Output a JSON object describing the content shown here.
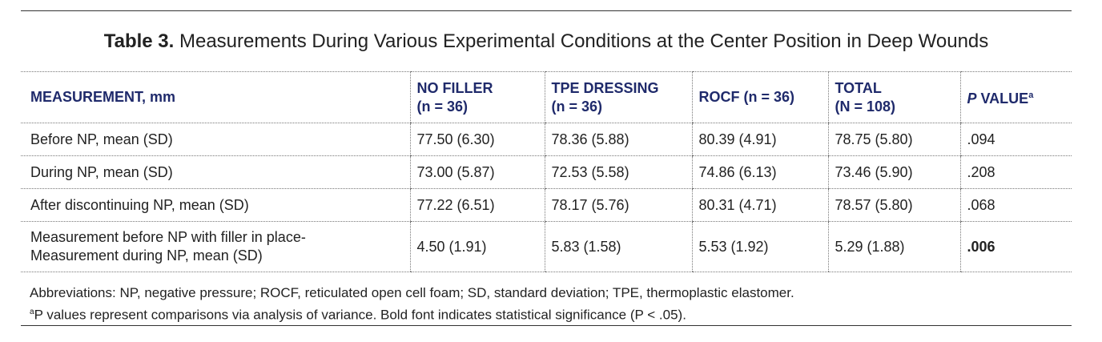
{
  "title": {
    "label": "Table 3.",
    "text": " Measurements During Various Experimental Conditions at the Center Position in Deep Wounds"
  },
  "columns": [
    {
      "line1": "MEASUREMENT, mm",
      "line2": ""
    },
    {
      "line1": "NO FILLER",
      "line2": "(n = 36)"
    },
    {
      "line1": "TPE DRESSING",
      "line2": "(n = 36)"
    },
    {
      "line1": "ROCF (n = 36)",
      "line2": ""
    },
    {
      "line1": "TOTAL",
      "line2": "(N = 108)"
    },
    {
      "line1": "P",
      "line1b": " VALUE",
      "sup": "a"
    }
  ],
  "rows": [
    {
      "label": "Before NP, mean (SD)",
      "label2": "",
      "values": [
        "77.50 (6.30)",
        "78.36 (5.88)",
        "80.39 (4.91)",
        "78.75 (5.80)",
        ".094"
      ]
    },
    {
      "label": "During NP, mean (SD)",
      "label2": "",
      "values": [
        "73.00 (5.87)",
        "72.53 (5.58)",
        "74.86 (6.13)",
        "73.46 (5.90)",
        ".208"
      ]
    },
    {
      "label": "After discontinuing NP, mean (SD)",
      "label2": "",
      "values": [
        "77.22 (6.51)",
        "78.17 (5.76)",
        "80.31 (4.71)",
        "78.57 (5.80)",
        ".068"
      ]
    },
    {
      "label": "Measurement before NP with filler in place-",
      "label2": "Measurement during NP, mean (SD)",
      "values": [
        "4.50 (1.91)",
        "5.83 (1.58)",
        "5.53 (1.92)",
        "5.29 (1.88)",
        ".006"
      ]
    }
  ],
  "notes": {
    "abbreviations": "Abbreviations: NP, negative pressure; ROCF, reticulated open cell foam; SD, standard deviation; TPE, thermoplastic elastomer.",
    "footnote_marker": "a",
    "footnote": "P values represent comparisons via analysis of variance. Bold font indicates statistical significance (P < .05)."
  }
}
